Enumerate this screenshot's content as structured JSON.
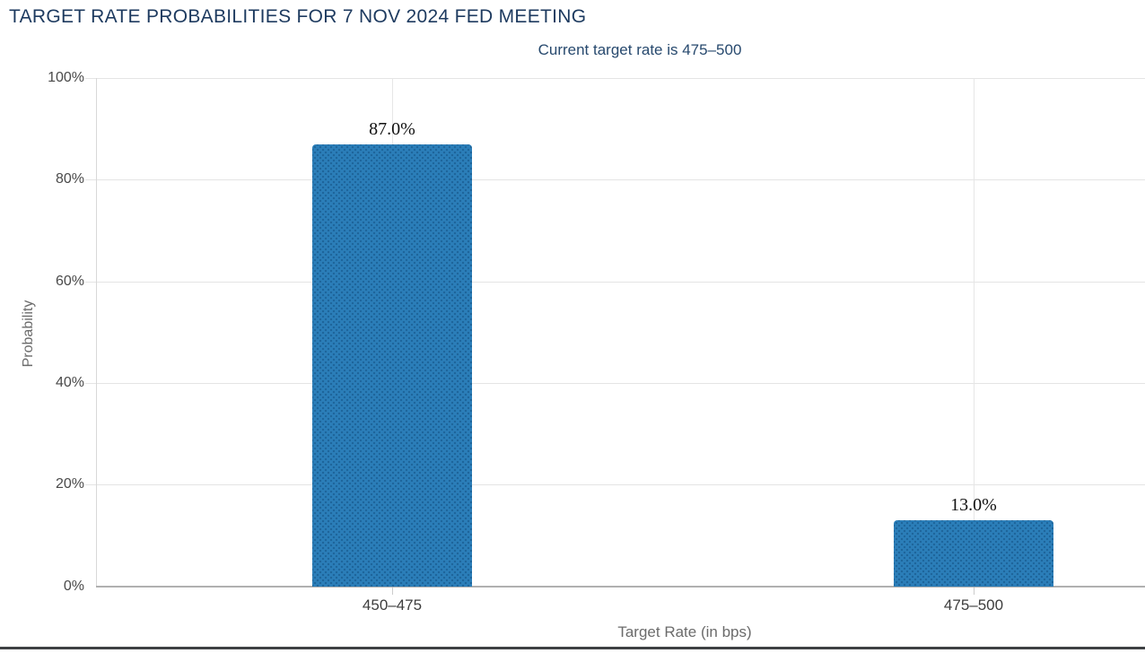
{
  "chart_data": {
    "type": "bar",
    "title": "TARGET RATE PROBABILITIES FOR 7 NOV 2024 FED MEETING",
    "subtitle": "Current target rate is 475–500",
    "current_target_rate": "475–500",
    "categories": [
      "450–475",
      "475–500"
    ],
    "values": [
      87.0,
      13.0
    ],
    "value_labels": [
      "87.0%",
      "13.0%"
    ],
    "xlabel": "Target Rate (in bps)",
    "ylabel": "Probability",
    "y_ticks": [
      "0%",
      "20%",
      "40%",
      "60%",
      "80%",
      "100%"
    ],
    "ylim": [
      0,
      100
    ],
    "grid": true,
    "legend": false
  },
  "colors": {
    "title_text": "#1d3a5f",
    "subtitle_text": "#27496e",
    "bar_fill": "#2b7eb9",
    "bar_dot": "#0b3b67",
    "tick_text": "#4a4a4a",
    "axis_title_text": "#6b6b6b",
    "category_text": "#3d3d3d",
    "value_label_text": "#101010",
    "gridline": "#e4e4e4",
    "x_axis_line": "#b0b0b0",
    "y_axis_line": "#d8d8d8",
    "footer_line": "#3e4144",
    "background": "#ffffff"
  }
}
